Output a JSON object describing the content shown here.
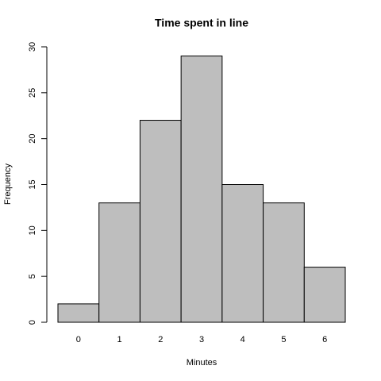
{
  "chart_data": {
    "type": "bar",
    "title": "Time spent in line",
    "x_label": "Minutes",
    "y_label": "Frequency",
    "categories": [
      "0",
      "1",
      "2",
      "3",
      "4",
      "5",
      "6"
    ],
    "values": [
      2,
      13,
      22,
      29,
      15,
      13,
      6
    ],
    "color": "#bebebe",
    "ylim": [
      0,
      30
    ],
    "yticks": [
      0,
      5,
      10,
      15,
      20,
      25,
      30
    ],
    "grid": false
  }
}
